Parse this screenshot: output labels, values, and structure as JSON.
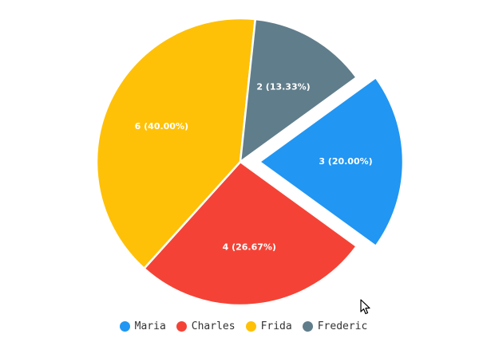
{
  "chart_data": {
    "type": "pie",
    "title": "",
    "exploded": "Maria",
    "legend_position": "bottom",
    "slices": [
      {
        "name": "Maria",
        "value": 3,
        "label": "3 (20.00%)",
        "color": "#2196F3"
      },
      {
        "name": "Charles",
        "value": 4,
        "label": "4 (26.67%)",
        "color": "#F44336"
      },
      {
        "name": "Frida",
        "value": 6,
        "label": "6 (40.00%)",
        "color": "#FFC107"
      },
      {
        "name": "Frederic",
        "value": 2,
        "label": "2 (13.33%)",
        "color": "#607D8B"
      }
    ]
  },
  "icons": {
    "cursor": "mouse-pointer-icon"
  }
}
